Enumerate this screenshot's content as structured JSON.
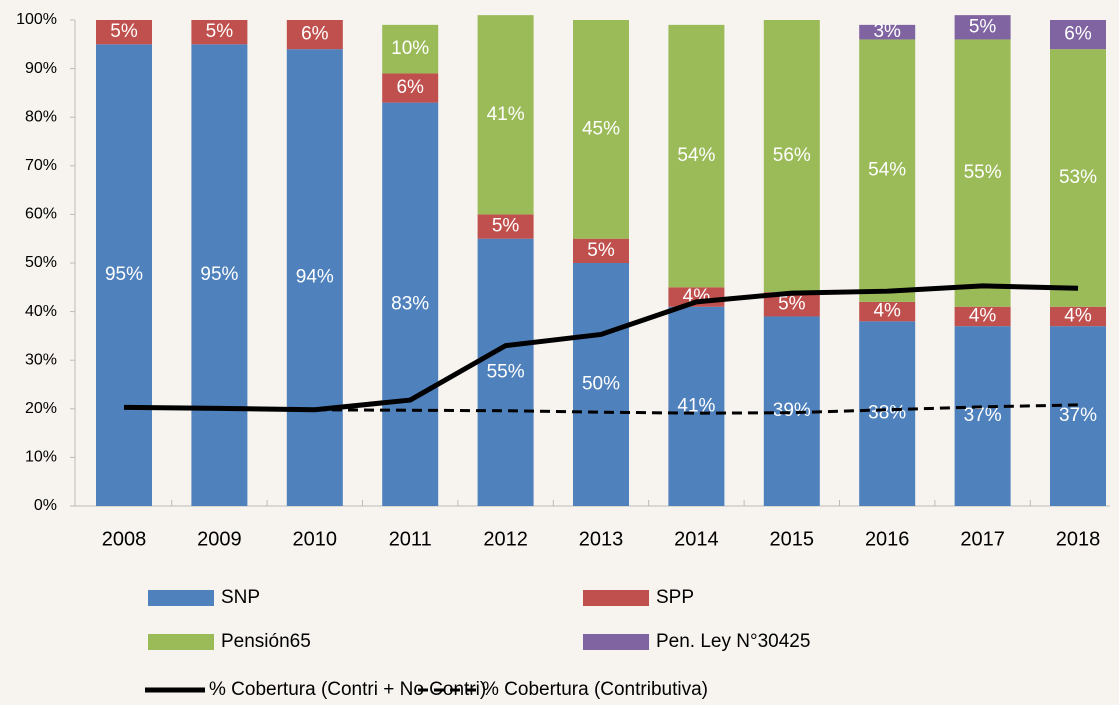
{
  "chart_data": {
    "type": "stacked-bar-line",
    "categories": [
      "2008",
      "2009",
      "2010",
      "2011",
      "2012",
      "2013",
      "2014",
      "2015",
      "2016",
      "2017",
      "2018"
    ],
    "series": [
      {
        "name": "SNP",
        "color": "#4f81bd",
        "values": [
          95,
          95,
          94,
          83,
          55,
          50,
          41,
          39,
          38,
          37,
          37
        ],
        "value_labels": [
          "95%",
          "95%",
          "94%",
          "83%",
          "55%",
          "50%",
          "41%",
          "39%",
          "38%",
          "37%",
          "37%"
        ]
      },
      {
        "name": "SPP",
        "color": "#c0504d",
        "values": [
          5,
          5,
          6,
          6,
          5,
          5,
          4,
          5,
          4,
          4,
          4
        ],
        "value_labels": [
          "5%",
          "5%",
          "6%",
          "6%",
          "5%",
          "5%",
          "4%",
          "5%",
          "4%",
          "4%",
          "4%"
        ]
      },
      {
        "name": "Pensión65",
        "color": "#9bbb59",
        "values": [
          null,
          null,
          null,
          10,
          41,
          45,
          54,
          56,
          54,
          55,
          53
        ],
        "value_labels": [
          null,
          null,
          null,
          "10%",
          "41%",
          "45%",
          "54%",
          "56%",
          "54%",
          "55%",
          "53%"
        ]
      },
      {
        "name": "Pen. Ley N°30425",
        "color": "#8064a2",
        "values": [
          null,
          null,
          null,
          null,
          null,
          null,
          null,
          null,
          3,
          5,
          6
        ],
        "value_labels": [
          null,
          null,
          null,
          null,
          null,
          null,
          null,
          null,
          "3%",
          "5%",
          "6%"
        ]
      }
    ],
    "lines": [
      {
        "name": "% Cobertura (Contri + No Contri)",
        "color": "#000000",
        "style": "solid",
        "values": [
          20.3,
          20.1,
          19.8,
          21.8,
          33,
          35.3,
          42,
          43.8,
          44.2,
          45.3,
          44.8
        ]
      },
      {
        "name": "% Cobertura (Contributiva)",
        "color": "#000000",
        "style": "dashed",
        "values": [
          20.3,
          20.1,
          19.8,
          19.7,
          19.6,
          19.3,
          19.1,
          19.2,
          19.8,
          20.4,
          20.8
        ]
      }
    ],
    "ylim": [
      0,
      100
    ],
    "yticks": [
      {
        "value": 0,
        "label": "0%"
      },
      {
        "value": 10,
        "label": "10%"
      },
      {
        "value": 20,
        "label": "20%"
      },
      {
        "value": 30,
        "label": "30%"
      },
      {
        "value": 40,
        "label": "40%"
      },
      {
        "value": 50,
        "label": "50%"
      },
      {
        "value": 60,
        "label": "60%"
      },
      {
        "value": 70,
        "label": "70%"
      },
      {
        "value": 80,
        "label": "80%"
      },
      {
        "value": 90,
        "label": "90%"
      },
      {
        "value": 100,
        "label": "100%"
      }
    ]
  }
}
